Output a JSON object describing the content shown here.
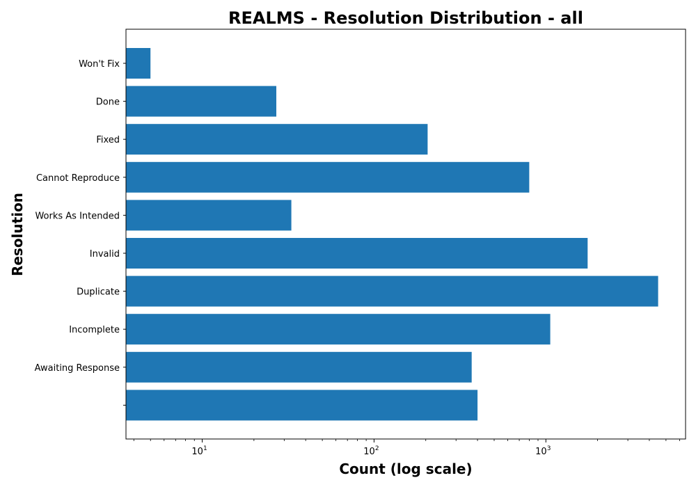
{
  "chart_data": {
    "type": "bar",
    "orientation": "horizontal",
    "title": "REALMS - Resolution Distribution - all",
    "xlabel": "Count (log scale)",
    "ylabel": "Resolution",
    "x_scale": "log",
    "xlim": [
      3.6,
      6500
    ],
    "x_ticks": [
      {
        "base": "10",
        "exp": "1",
        "value": 10
      },
      {
        "base": "10",
        "exp": "2",
        "value": 100
      },
      {
        "base": "10",
        "exp": "3",
        "value": 1000
      }
    ],
    "grid": false,
    "bar_color": "#1f77b4",
    "categories": [
      "",
      "Awaiting Response",
      "Incomplete",
      "Duplicate",
      "Invalid",
      "Works As Intended",
      "Cannot Reproduce",
      "Fixed",
      "Done",
      "Won't Fix"
    ],
    "values": [
      400,
      370,
      1060,
      4500,
      1750,
      33,
      800,
      205,
      27,
      5
    ]
  }
}
